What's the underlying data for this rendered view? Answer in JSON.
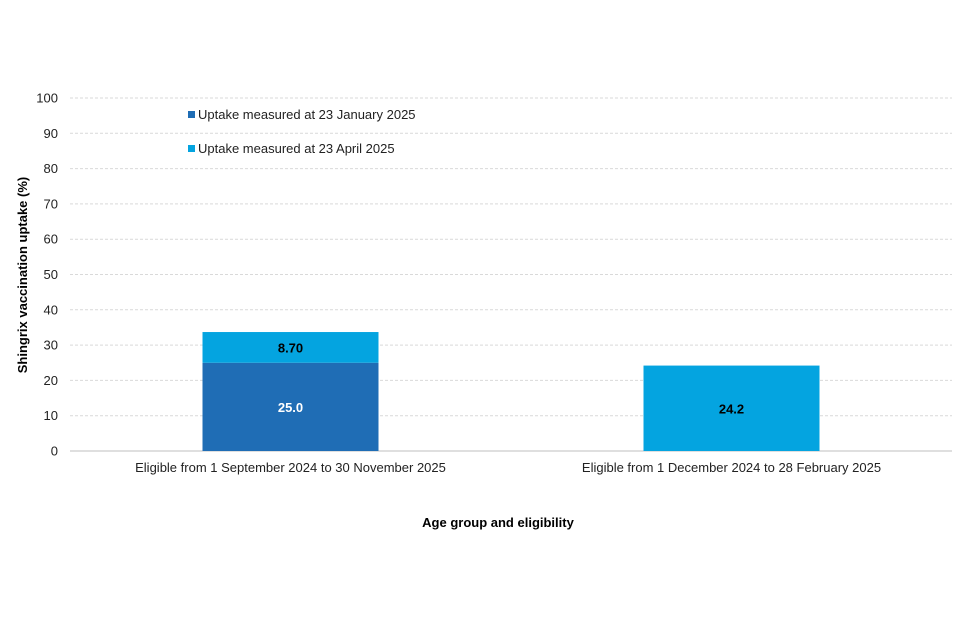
{
  "colors": {
    "jan_series": "#1f6db5",
    "apr_series": "#04a4e0",
    "grid": "#d9d9d9",
    "axis": "#bfbfbf"
  },
  "chart_data": {
    "type": "bar",
    "stacked": true,
    "title": "",
    "xlabel": "Age group and eligibility",
    "ylabel": "Shingrix vaccination uptake (%)",
    "ylim": [
      0,
      100
    ],
    "yticks": [
      0,
      10,
      20,
      30,
      40,
      50,
      60,
      70,
      80,
      90,
      100
    ],
    "grid": true,
    "legend_position": "top-left",
    "categories": [
      "Eligible from 1 September 2024 to 30 November 2025",
      "Eligible from 1 December 2024 to 28 February 2025"
    ],
    "series": [
      {
        "name": "Uptake measured at 23 January 2025",
        "values": [
          25.0,
          null
        ],
        "labels": [
          "25.0",
          ""
        ],
        "label_color": "#ffffff"
      },
      {
        "name": "Uptake measured at 23 April 2025",
        "values": [
          8.7,
          24.2
        ],
        "labels": [
          "8.70",
          "24.2"
        ],
        "label_color": "#000000"
      }
    ]
  }
}
